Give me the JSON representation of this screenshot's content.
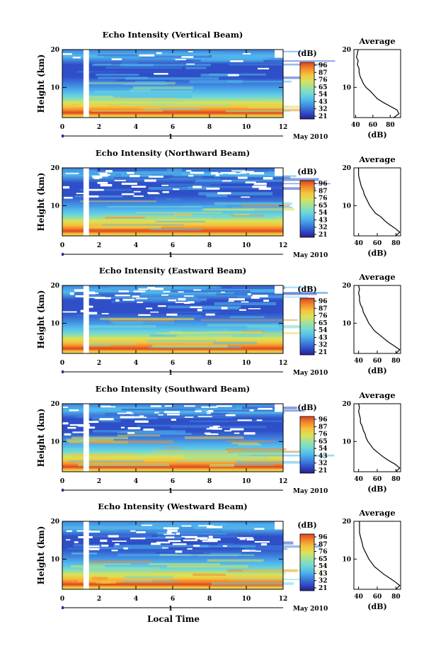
{
  "figure": {
    "x_axis_label": "Local Time",
    "date_label": "May 2010",
    "date_tick_label": "1"
  },
  "colors": {
    "scale": [
      "#2b1f8f",
      "#2f4fc8",
      "#3f86e0",
      "#52b9ec",
      "#6fd8d6",
      "#9fe0a0",
      "#d7e35a",
      "#f6c43c",
      "#f28a2c",
      "#e0451f"
    ],
    "gap": "#ffffff",
    "date_axis": "#2a2aa0"
  },
  "chart_data": [
    {
      "type": "heatmap",
      "title": "Echo Intensity (Vertical Beam)",
      "xlabel": "",
      "ylabel": "Height (km)",
      "xlim": [
        0,
        12
      ],
      "ylim": [
        2,
        20
      ],
      "x_ticks": [
        "0",
        "2",
        "4",
        "6",
        "8",
        "10",
        "12"
      ],
      "y_ticks": [
        "10",
        "20"
      ],
      "colorbar": {
        "label": "(dB)",
        "ticks": [
          "96",
          "87",
          "76",
          "65",
          "54",
          "43",
          "32",
          "21"
        ]
      },
      "data_gap_hours": [
        1.15,
        1.45
      ],
      "average_profile": {
        "title": "Average",
        "xlabel": "(dB)",
        "x_ticks": [
          "40",
          "60",
          "80"
        ],
        "xlim": [
          38,
          92
        ],
        "y_ticks": [
          "10",
          "20"
        ],
        "ylim": [
          2,
          20
        ],
        "heights_km": [
          2,
          3,
          4,
          5,
          6,
          7,
          8,
          9,
          10,
          11,
          12,
          13,
          14,
          15,
          16,
          17,
          18,
          19,
          20
        ],
        "values_db": [
          84,
          90,
          88,
          80,
          72,
          65,
          61,
          57,
          52,
          49,
          47,
          45,
          44,
          44,
          42,
          43,
          41,
          42,
          43
        ]
      }
    },
    {
      "type": "heatmap",
      "title": "Echo Intensity (Northward Beam)",
      "xlabel": "",
      "ylabel": "Height (km)",
      "xlim": [
        0,
        12
      ],
      "ylim": [
        2,
        20
      ],
      "x_ticks": [
        "0",
        "2",
        "4",
        "6",
        "8",
        "10",
        "12"
      ],
      "y_ticks": [
        "10",
        "20"
      ],
      "colorbar": {
        "label": "(dB)",
        "ticks": [
          "96",
          "87",
          "76",
          "65",
          "54",
          "43",
          "32",
          "21"
        ]
      },
      "data_gap_hours": [
        1.15,
        1.45
      ],
      "average_profile": {
        "title": "Average",
        "xlabel": "(dB)",
        "x_ticks": [
          "40",
          "60",
          "80"
        ],
        "xlim": [
          35,
          85
        ],
        "y_ticks": [
          "10",
          "20"
        ],
        "ylim": [
          2,
          20
        ],
        "heights_km": [
          2,
          3,
          4,
          5,
          6,
          7,
          8,
          9,
          10,
          11,
          12,
          13,
          14,
          15,
          16,
          17,
          18,
          19,
          20
        ],
        "values_db": [
          80,
          84,
          79,
          73,
          68,
          64,
          58,
          55,
          52,
          50,
          48,
          46,
          45,
          43,
          42,
          41,
          40,
          40,
          40
        ]
      }
    },
    {
      "type": "heatmap",
      "title": "Echo Intensity (Eastward Beam)",
      "xlabel": "",
      "ylabel": "Height (km)",
      "xlim": [
        0,
        12
      ],
      "ylim": [
        2,
        20
      ],
      "x_ticks": [
        "0",
        "2",
        "4",
        "6",
        "8",
        "10",
        "12"
      ],
      "y_ticks": [
        "10",
        "20"
      ],
      "colorbar": {
        "label": "(dB)",
        "ticks": [
          "96",
          "87",
          "76",
          "65",
          "54",
          "43",
          "32",
          "21"
        ]
      },
      "data_gap_hours": [
        1.15,
        1.45
      ],
      "average_profile": {
        "title": "Average",
        "xlabel": "(dB)",
        "x_ticks": [
          "40",
          "60",
          "80"
        ],
        "xlim": [
          35,
          85
        ],
        "y_ticks": [
          "10",
          "20"
        ],
        "ylim": [
          2,
          20
        ],
        "heights_km": [
          2,
          3,
          4,
          5,
          6,
          7,
          8,
          9,
          10,
          11,
          12,
          13,
          14,
          15,
          16,
          17,
          18,
          19,
          20
        ],
        "values_db": [
          80,
          84,
          78,
          72,
          67,
          62,
          57,
          54,
          51,
          49,
          47,
          45,
          44,
          42,
          41,
          41,
          40,
          41,
          40
        ]
      }
    },
    {
      "type": "heatmap",
      "title": "Echo Intensity (Southward Beam)",
      "xlabel": "",
      "ylabel": "Height (km)",
      "xlim": [
        0,
        12
      ],
      "ylim": [
        2,
        20
      ],
      "x_ticks": [
        "0",
        "2",
        "4",
        "6",
        "8",
        "10",
        "12"
      ],
      "y_ticks": [
        "10",
        "20"
      ],
      "colorbar": {
        "label": "(dB)",
        "ticks": [
          "96",
          "87",
          "76",
          "65",
          "54",
          "43",
          "32",
          "21"
        ]
      },
      "data_gap_hours": [
        1.15,
        1.45
      ],
      "average_profile": {
        "title": "Average",
        "xlabel": "(dB)",
        "x_ticks": [
          "40",
          "60",
          "80"
        ],
        "xlim": [
          35,
          85
        ],
        "y_ticks": [
          "10",
          "20"
        ],
        "ylim": [
          2,
          20
        ],
        "heights_km": [
          2,
          3,
          4,
          5,
          6,
          7,
          8,
          9,
          10,
          11,
          12,
          13,
          14,
          15,
          16,
          17,
          18,
          19,
          20
        ],
        "values_db": [
          80,
          84,
          79,
          72,
          66,
          61,
          56,
          53,
          50,
          48,
          47,
          45,
          44,
          42,
          42,
          41,
          40,
          41,
          40
        ]
      }
    },
    {
      "type": "heatmap",
      "title": "Echo Intensity (Westward Beam)",
      "xlabel": "Local Time",
      "ylabel": "Height (km)",
      "xlim": [
        0,
        12
      ],
      "ylim": [
        2,
        20
      ],
      "x_ticks": [
        "0",
        "2",
        "4",
        "6",
        "8",
        "10",
        "12"
      ],
      "y_ticks": [
        "10",
        "20"
      ],
      "colorbar": {
        "label": "(dB)",
        "ticks": [
          "96",
          "87",
          "76",
          "65",
          "54",
          "43",
          "32",
          "21"
        ]
      },
      "data_gap_hours": [
        1.15,
        1.45
      ],
      "average_profile": {
        "title": "Average",
        "xlabel": "(dB)",
        "x_ticks": [
          "40",
          "60",
          "80"
        ],
        "xlim": [
          35,
          85
        ],
        "y_ticks": [
          "10",
          "20"
        ],
        "ylim": [
          2,
          20
        ],
        "heights_km": [
          2,
          3,
          4,
          5,
          6,
          7,
          8,
          9,
          10,
          11,
          12,
          13,
          14,
          15,
          16,
          17,
          18,
          19,
          20
        ],
        "values_db": [
          80,
          84,
          79,
          73,
          67,
          62,
          57,
          54,
          51,
          49,
          47,
          45,
          44,
          43,
          42,
          41,
          41,
          41,
          41
        ]
      }
    }
  ]
}
